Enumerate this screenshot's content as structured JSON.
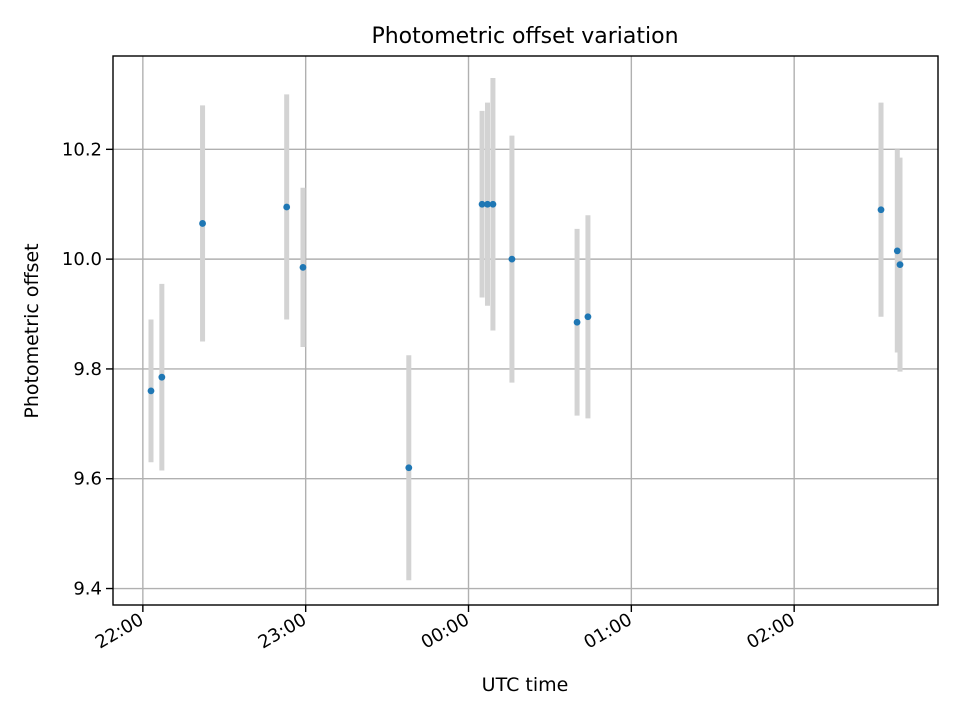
{
  "chart_data": {
    "type": "scatter",
    "title": "Photometric offset variation",
    "xlabel": "UTC time",
    "ylabel": "Photometric offset",
    "x_ticks": [
      "22:00",
      "23:00",
      "00:00",
      "01:00",
      "02:00"
    ],
    "y_ticks": [
      "9.4",
      "9.6",
      "9.8",
      "10.0",
      "10.2"
    ],
    "xlim": [
      "21:49",
      "02:53"
    ],
    "ylim": [
      9.37,
      10.37
    ],
    "grid": true,
    "errorbar_color": "#d3d3d3",
    "point_color": "#1f77b4",
    "series": [
      {
        "points": [
          {
            "x": "22:03",
            "y": 9.76,
            "yerr": 0.13
          },
          {
            "x": "22:07",
            "y": 9.785,
            "yerr": 0.17
          },
          {
            "x": "22:22",
            "y": 10.065,
            "yerr": 0.215
          },
          {
            "x": "22:53",
            "y": 10.095,
            "yerr": 0.205
          },
          {
            "x": "22:59",
            "y": 9.985,
            "yerr": 0.145
          },
          {
            "x": "23:38",
            "y": 9.62,
            "yerr": 0.205
          },
          {
            "x": "00:05",
            "y": 10.1,
            "yerr": 0.17
          },
          {
            "x": "00:07",
            "y": 10.1,
            "yerr": 0.185
          },
          {
            "x": "00:09",
            "y": 10.1,
            "yerr": 0.23
          },
          {
            "x": "00:16",
            "y": 10.0,
            "yerr": 0.225
          },
          {
            "x": "00:40",
            "y": 9.885,
            "yerr": 0.17
          },
          {
            "x": "00:44",
            "y": 9.895,
            "yerr": 0.185
          },
          {
            "x": "02:32",
            "y": 10.09,
            "yerr": 0.195
          },
          {
            "x": "02:38",
            "y": 10.015,
            "yerr": 0.185
          },
          {
            "x": "02:39",
            "y": 9.99,
            "yerr": 0.195
          }
        ]
      }
    ]
  }
}
